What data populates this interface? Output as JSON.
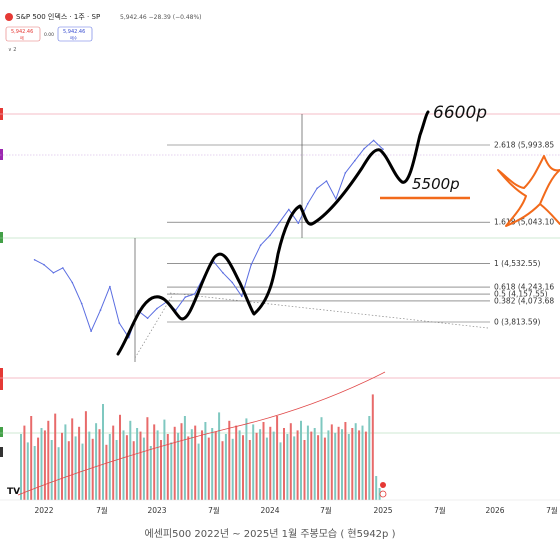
{
  "header": {
    "symbol_title": "S&P 500 인덱스 · 1주 · SP",
    "price_readout": "5,942.46 −28.39 (−0.48%)",
    "sell_price": "5,942.46",
    "sell_label": "매",
    "spread": "0.00",
    "buy_price": "5,942.46",
    "buy_label": "매수",
    "indicator_label": "2"
  },
  "colors": {
    "price_line": "#5b6ee1",
    "drawing": "#000000",
    "fib_line": "#555555",
    "projection": "#f26a1b",
    "star": "#f26a1b",
    "volume_up": "#7fc8c0",
    "volume_down": "#e86a6a",
    "volume_ma": "#e04848",
    "hline_pink": "#f3a8b4",
    "watermark_text": "#555555"
  },
  "fib_levels": [
    {
      "ratio": "2.618",
      "value": "(5,993.85"
    },
    {
      "ratio": "1.618",
      "value": "(5,043.10"
    },
    {
      "ratio": "1",
      "value": "(4,532.55)"
    },
    {
      "ratio": "0.618",
      "value": "(4,243.16"
    },
    {
      "ratio": "0.5",
      "value": "(4,157.55)"
    },
    {
      "ratio": "0.382",
      "value": "(4,073.68"
    },
    {
      "ratio": "0",
      "value": "(3,813.59)"
    }
  ],
  "annotations": {
    "target_high": "6600p",
    "target_low": "5500p"
  },
  "chart_data": {
    "type": "line",
    "title": "",
    "x_ticks": [
      "2022",
      "7월",
      "2023",
      "7월",
      "2024",
      "7월",
      "2025",
      "7월",
      "2026",
      "7월"
    ],
    "series": [
      {
        "values": [
          {
            "x": "2021-12",
            "y": 4580
          },
          {
            "x": "2022-01",
            "y": 4520
          },
          {
            "x": "2022-02",
            "y": 4420
          },
          {
            "x": "2022-03",
            "y": 4480
          },
          {
            "x": "2022-04",
            "y": 4300
          },
          {
            "x": "2022-05",
            "y": 4040
          },
          {
            "x": "2022-06",
            "y": 3700
          },
          {
            "x": "2022-07",
            "y": 3960
          },
          {
            "x": "2022-08",
            "y": 4250
          },
          {
            "x": "2022-09",
            "y": 3800
          },
          {
            "x": "2022-10",
            "y": 3620
          },
          {
            "x": "2022-11",
            "y": 3950
          },
          {
            "x": "2022-12",
            "y": 3860
          },
          {
            "x": "2023-01",
            "y": 3980
          },
          {
            "x": "2023-02",
            "y": 4060
          },
          {
            "x": "2023-03",
            "y": 3960
          },
          {
            "x": "2023-04",
            "y": 4120
          },
          {
            "x": "2023-05",
            "y": 4160
          },
          {
            "x": "2023-06",
            "y": 4380
          },
          {
            "x": "2023-07",
            "y": 4560
          },
          {
            "x": "2023-08",
            "y": 4420
          },
          {
            "x": "2023-09",
            "y": 4300
          },
          {
            "x": "2023-10",
            "y": 4130
          },
          {
            "x": "2023-11",
            "y": 4520
          },
          {
            "x": "2023-12",
            "y": 4760
          },
          {
            "x": "2024-01",
            "y": 4880
          },
          {
            "x": "2024-02",
            "y": 5040
          },
          {
            "x": "2024-03",
            "y": 5200
          },
          {
            "x": "2024-04",
            "y": 5030
          },
          {
            "x": "2024-05",
            "y": 5270
          },
          {
            "x": "2024-06",
            "y": 5460
          },
          {
            "x": "2024-07",
            "y": 5550
          },
          {
            "x": "2024-08",
            "y": 5330
          },
          {
            "x": "2024-09",
            "y": 5650
          },
          {
            "x": "2024-10",
            "y": 5800
          },
          {
            "x": "2024-11",
            "y": 5950
          },
          {
            "x": "2024-12",
            "y": 6050
          },
          {
            "x": "2025-01",
            "y": 5942
          }
        ]
      }
    ]
  },
  "volume_data": [
    {
      "v": 0.55,
      "up": true
    },
    {
      "v": 0.62,
      "up": false
    },
    {
      "v": 0.48,
      "up": true
    },
    {
      "v": 0.7,
      "up": false
    },
    {
      "v": 0.45,
      "up": true
    },
    {
      "v": 0.52,
      "up": false
    },
    {
      "v": 0.6,
      "up": true
    },
    {
      "v": 0.58,
      "up": false
    },
    {
      "v": 0.66,
      "up": false
    },
    {
      "v": 0.5,
      "up": true
    },
    {
      "v": 0.72,
      "up": false
    },
    {
      "v": 0.44,
      "up": true
    },
    {
      "v": 0.56,
      "up": false
    },
    {
      "v": 0.63,
      "up": true
    },
    {
      "v": 0.49,
      "up": false
    },
    {
      "v": 0.68,
      "up": false
    },
    {
      "v": 0.53,
      "up": true
    },
    {
      "v": 0.61,
      "up": false
    },
    {
      "v": 0.47,
      "up": true
    },
    {
      "v": 0.74,
      "up": false
    },
    {
      "v": 0.57,
      "up": true
    },
    {
      "v": 0.51,
      "up": false
    },
    {
      "v": 0.64,
      "up": true
    },
    {
      "v": 0.59,
      "up": false
    },
    {
      "v": 0.8,
      "up": true
    },
    {
      "v": 0.46,
      "up": false
    },
    {
      "v": 0.55,
      "up": true
    },
    {
      "v": 0.62,
      "up": false
    },
    {
      "v": 0.5,
      "up": true
    },
    {
      "v": 0.71,
      "up": false
    },
    {
      "v": 0.58,
      "up": true
    },
    {
      "v": 0.54,
      "up": false
    },
    {
      "v": 0.66,
      "up": true
    },
    {
      "v": 0.49,
      "up": false
    },
    {
      "v": 0.6,
      "up": true
    },
    {
      "v": 0.57,
      "up": false
    },
    {
      "v": 0.52,
      "up": true
    },
    {
      "v": 0.69,
      "up": false
    },
    {
      "v": 0.45,
      "up": true
    },
    {
      "v": 0.63,
      "up": false
    },
    {
      "v": 0.58,
      "up": true
    },
    {
      "v": 0.5,
      "up": false
    },
    {
      "v": 0.67,
      "up": true
    },
    {
      "v": 0.55,
      "up": false
    },
    {
      "v": 0.48,
      "up": true
    },
    {
      "v": 0.61,
      "up": false
    },
    {
      "v": 0.56,
      "up": true
    },
    {
      "v": 0.64,
      "up": false
    },
    {
      "v": 0.7,
      "up": true
    },
    {
      "v": 0.53,
      "up": false
    },
    {
      "v": 0.59,
      "up": true
    },
    {
      "v": 0.62,
      "up": false
    },
    {
      "v": 0.47,
      "up": true
    },
    {
      "v": 0.58,
      "up": false
    },
    {
      "v": 0.65,
      "up": true
    },
    {
      "v": 0.52,
      "up": false
    },
    {
      "v": 0.6,
      "up": true
    },
    {
      "v": 0.57,
      "up": false
    },
    {
      "v": 0.73,
      "up": true
    },
    {
      "v": 0.49,
      "up": false
    },
    {
      "v": 0.55,
      "up": true
    },
    {
      "v": 0.66,
      "up": false
    },
    {
      "v": 0.51,
      "up": true
    },
    {
      "v": 0.62,
      "up": false
    },
    {
      "v": 0.58,
      "up": true
    },
    {
      "v": 0.54,
      "up": false
    },
    {
      "v": 0.68,
      "up": true
    },
    {
      "v": 0.5,
      "up": false
    },
    {
      "v": 0.63,
      "up": true
    },
    {
      "v": 0.56,
      "up": false
    },
    {
      "v": 0.59,
      "up": true
    },
    {
      "v": 0.65,
      "up": false
    },
    {
      "v": 0.52,
      "up": true
    },
    {
      "v": 0.61,
      "up": false
    },
    {
      "v": 0.57,
      "up": true
    },
    {
      "v": 0.7,
      "up": false
    },
    {
      "v": 0.48,
      "up": true
    },
    {
      "v": 0.6,
      "up": false
    },
    {
      "v": 0.55,
      "up": true
    },
    {
      "v": 0.64,
      "up": false
    },
    {
      "v": 0.53,
      "up": true
    },
    {
      "v": 0.58,
      "up": false
    },
    {
      "v": 0.66,
      "up": true
    },
    {
      "v": 0.5,
      "up": false
    },
    {
      "v": 0.62,
      "up": true
    },
    {
      "v": 0.57,
      "up": false
    },
    {
      "v": 0.6,
      "up": true
    },
    {
      "v": 0.54,
      "up": false
    },
    {
      "v": 0.69,
      "up": true
    },
    {
      "v": 0.52,
      "up": false
    },
    {
      "v": 0.58,
      "up": true
    },
    {
      "v": 0.63,
      "up": false
    },
    {
      "v": 0.56,
      "up": true
    },
    {
      "v": 0.61,
      "up": false
    },
    {
      "v": 0.59,
      "up": true
    },
    {
      "v": 0.65,
      "up": false
    },
    {
      "v": 0.55,
      "up": true
    },
    {
      "v": 0.6,
      "up": false
    },
    {
      "v": 0.64,
      "up": true
    },
    {
      "v": 0.58,
      "up": false
    },
    {
      "v": 0.62,
      "up": true
    },
    {
      "v": 0.57,
      "up": false
    },
    {
      "v": 0.7,
      "up": true
    },
    {
      "v": 0.88,
      "up": false
    },
    {
      "v": 0.2,
      "up": true
    },
    {
      "v": 0.1,
      "up": true
    }
  ],
  "caption": "에센피500 2022년 ~ 2025년 1월 주봉모습 ( 현5942p )"
}
